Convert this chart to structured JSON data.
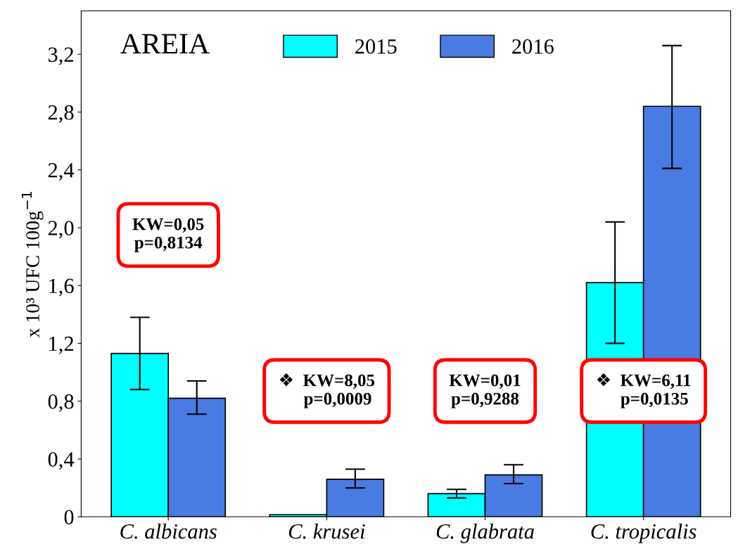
{
  "chart_data": {
    "type": "bar",
    "title": "AREIA",
    "ylabel": "x 10³ UFC 100g$^{−1}$",
    "categories": [
      "C. albicans",
      "C. krusei",
      "C. glabrata",
      "C. tropicalis"
    ],
    "series": [
      {
        "name": "2015",
        "color": "#00ffff",
        "values": [
          1.13,
          0.015,
          0.16,
          1.62
        ],
        "errors": [
          [
            0.88,
            1.38
          ],
          null,
          [
            0.13,
            0.19
          ],
          [
            1.2,
            2.04
          ]
        ]
      },
      {
        "name": "2016",
        "color": "#4a7be3",
        "values": [
          0.82,
          0.26,
          0.29,
          2.84
        ],
        "errors": [
          [
            0.71,
            0.94
          ],
          [
            0.2,
            0.33
          ],
          [
            0.23,
            0.36
          ],
          [
            2.41,
            3.26
          ]
        ]
      }
    ],
    "annotations": [
      "KW=0,05\np=0,8134",
      "❖  KW=8,05\n     p=0,0009",
      "KW=0,01\np=0,9288",
      "❖  KW=6,11\n     p=0,0135"
    ],
    "ylim": [
      0,
      3.5
    ],
    "yticks": [
      {
        "value": 0,
        "label": "0"
      },
      {
        "value": 0.4,
        "label": "0,4"
      },
      {
        "value": 0.8,
        "label": "0,8"
      },
      {
        "value": 1.2,
        "label": "1,2"
      },
      {
        "value": 1.6,
        "label": "1,6"
      },
      {
        "value": 2.0,
        "label": "2,0"
      },
      {
        "value": 2.4,
        "label": "2,4"
      },
      {
        "value": 2.8,
        "label": "2,8"
      },
      {
        "value": 3.2,
        "label": "3,2"
      }
    ],
    "grid": false,
    "legend": "top"
  }
}
